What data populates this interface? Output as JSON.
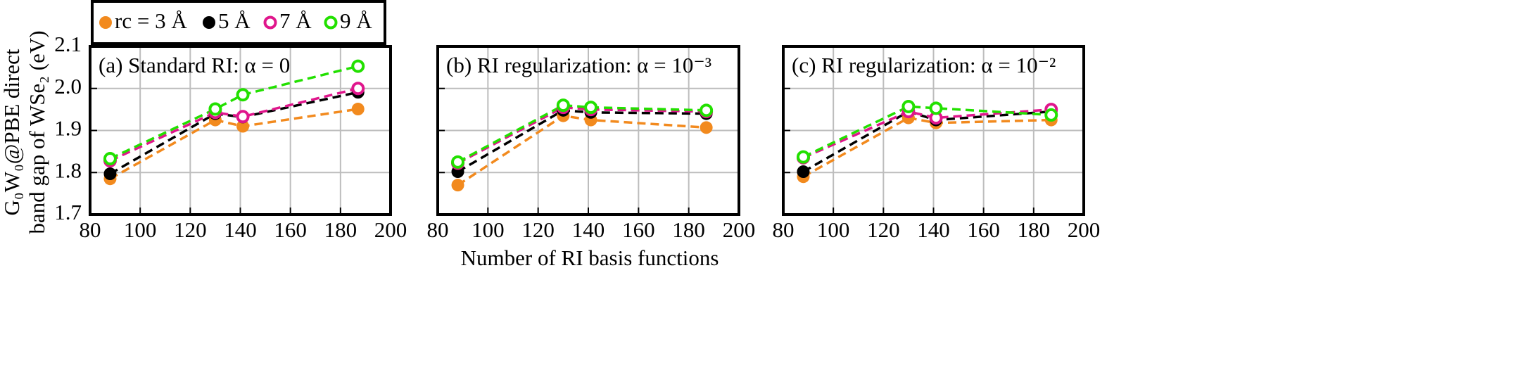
{
  "chart_data": [
    {
      "type": "line",
      "title": "(a) Standard RI: α = 0",
      "xlabel": "Number of RI basis functions",
      "ylabel": [
        "G₀W₀@PBE direct",
        "band gap of WSe₂ (eV)"
      ],
      "x": [
        88,
        130,
        141,
        187
      ],
      "series": [
        {
          "name": "rc = 3 Å",
          "color": "#f28a1e",
          "marker": "filled",
          "values": [
            1.785,
            1.925,
            1.91,
            1.951
          ]
        },
        {
          "name": "5 Å",
          "color": "#000000",
          "marker": "filled",
          "values": [
            1.797,
            1.94,
            1.932,
            1.991
          ]
        },
        {
          "name": "7 Å",
          "color": "#e0168c",
          "marker": "open",
          "values": [
            1.828,
            1.943,
            1.933,
            2.0
          ]
        },
        {
          "name": "9 Å",
          "color": "#22e000",
          "marker": "open",
          "values": [
            1.833,
            1.951,
            1.985,
            2.053
          ]
        }
      ],
      "xlim": [
        80,
        200
      ],
      "xticks": [
        80,
        100,
        120,
        140,
        160,
        180,
        200
      ],
      "ylim": [
        1.7,
        2.1
      ],
      "yticks": [
        1.7,
        1.8,
        1.9,
        {
          "value": 2,
          "label": "2.0"
        },
        2.1
      ],
      "grid": true
    },
    {
      "type": "line",
      "title": "(b) RI regularization: α = 10⁻³",
      "x": [
        88,
        130,
        141,
        187
      ],
      "series": [
        {
          "color": "#f28a1e",
          "marker": "filled",
          "values": [
            1.77,
            1.935,
            1.925,
            1.907
          ]
        },
        {
          "color": "#000000",
          "marker": "filled",
          "values": [
            1.802,
            1.948,
            1.943,
            1.94
          ]
        },
        {
          "color": "#e0168c",
          "marker": "open",
          "values": [
            1.822,
            1.955,
            1.95,
            1.945
          ]
        },
        {
          "color": "#22e000",
          "marker": "open",
          "values": [
            1.825,
            1.96,
            1.955,
            1.948
          ]
        }
      ],
      "xlim": [
        80,
        200
      ],
      "xticks": [
        80,
        100,
        120,
        140,
        160,
        180,
        200
      ],
      "ylim": [
        1.7,
        2.1
      ],
      "yticks": [
        1.7,
        1.8,
        1.9,
        {
          "value": 2,
          "label": "2.0"
        },
        2.1
      ],
      "grid": true
    },
    {
      "type": "line",
      "title": "(c) RI regularization: α = 10⁻²",
      "x": [
        88,
        130,
        141,
        187
      ],
      "series": [
        {
          "color": "#f28a1e",
          "marker": "filled",
          "values": [
            1.79,
            1.93,
            1.918,
            1.925
          ]
        },
        {
          "color": "#000000",
          "marker": "filled",
          "values": [
            1.802,
            1.945,
            1.925,
            1.945
          ]
        },
        {
          "color": "#e0168c",
          "marker": "open",
          "values": [
            1.835,
            1.945,
            1.93,
            1.95
          ]
        },
        {
          "color": "#22e000",
          "marker": "open",
          "values": [
            1.837,
            1.957,
            1.953,
            1.937
          ]
        }
      ],
      "xlim": [
        80,
        200
      ],
      "xticks": [
        80,
        100,
        120,
        140,
        160,
        180,
        200
      ],
      "ylim": [
        1.7,
        2.1
      ],
      "yticks": [
        1.7,
        1.8,
        1.9,
        {
          "value": 2,
          "label": "2.0"
        },
        2.1
      ],
      "grid": true
    }
  ]
}
